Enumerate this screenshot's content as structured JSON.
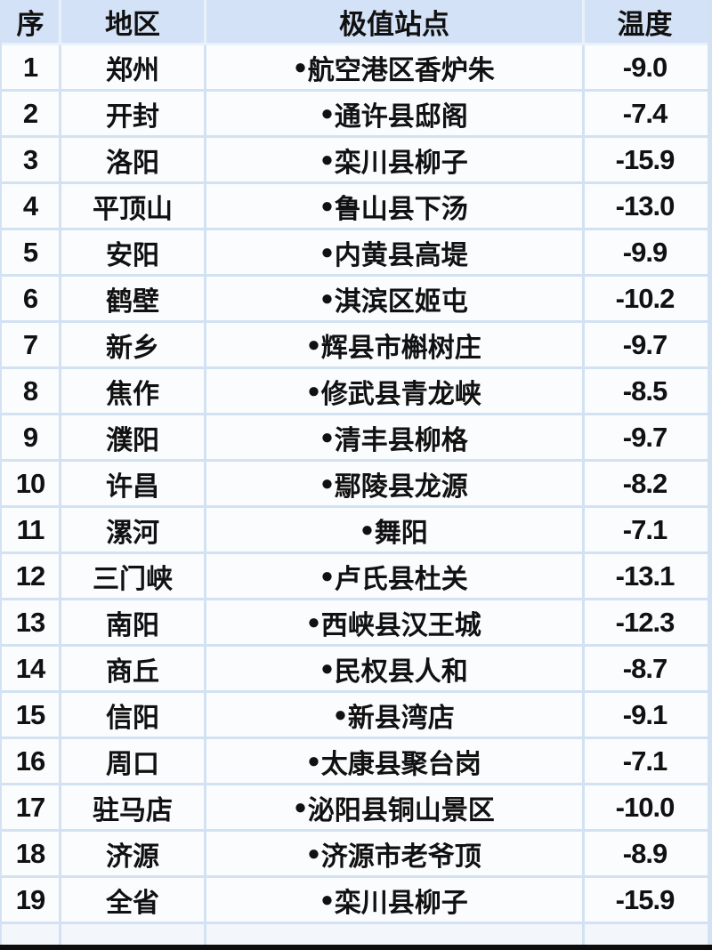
{
  "chart_data": {
    "type": "table",
    "columns": [
      "序",
      "地区",
      "极值站点",
      "温度"
    ],
    "rows": [
      {
        "seq": "1",
        "region": "郑州",
        "bullet": "●",
        "station": "航空港区香炉朱",
        "temp": "-9.0"
      },
      {
        "seq": "2",
        "region": "开封",
        "bullet": "●",
        "station": "通许县邸阁",
        "temp": "-7.4"
      },
      {
        "seq": "3",
        "region": "洛阳",
        "bullet": "●",
        "station": "栾川县柳子",
        "temp": "-15.9"
      },
      {
        "seq": "4",
        "region": "平顶山",
        "bullet": "●",
        "station": "鲁山县下汤",
        "temp": "-13.0"
      },
      {
        "seq": "5",
        "region": "安阳",
        "bullet": "●",
        "station": "内黄县高堤",
        "temp": "-9.9"
      },
      {
        "seq": "6",
        "region": "鹤壁",
        "bullet": "●",
        "station": "淇滨区姬屯",
        "temp": "-10.2"
      },
      {
        "seq": "7",
        "region": "新乡",
        "bullet": "●",
        "station": "辉县市槲树庄",
        "temp": "-9.7"
      },
      {
        "seq": "8",
        "region": "焦作",
        "bullet": "●",
        "station": "修武县青龙峡",
        "temp": "-8.5"
      },
      {
        "seq": "9",
        "region": "濮阳",
        "bullet": "●",
        "station": "清丰县柳格",
        "temp": "-9.7"
      },
      {
        "seq": "10",
        "region": "许昌",
        "bullet": "●",
        "station": "鄢陵县龙源",
        "temp": "-8.2"
      },
      {
        "seq": "11",
        "region": "漯河",
        "bullet": "●",
        "station": "舞阳",
        "temp": "-7.1"
      },
      {
        "seq": "12",
        "region": "三门峡",
        "bullet": "●",
        "station": "卢氏县杜关",
        "temp": "-13.1"
      },
      {
        "seq": "13",
        "region": "南阳",
        "bullet": "●",
        "station": "西峡县汉王城",
        "temp": "-12.3"
      },
      {
        "seq": "14",
        "region": "商丘",
        "bullet": "●",
        "station": "民权县人和",
        "temp": "-8.7"
      },
      {
        "seq": "15",
        "region": "信阳",
        "bullet": "●",
        "station": "新县湾店",
        "temp": "-9.1"
      },
      {
        "seq": "16",
        "region": "周口",
        "bullet": "●",
        "station": "太康县聚台岗",
        "temp": "-7.1"
      },
      {
        "seq": "17",
        "region": "驻马店",
        "bullet": "●",
        "station": "泌阳县铜山景区",
        "temp": "-10.0"
      },
      {
        "seq": "18",
        "region": "济源",
        "bullet": "●",
        "station": "济源市老爷顶",
        "temp": "-8.9"
      },
      {
        "seq": "19",
        "region": "全省",
        "bullet": "●",
        "station": "栾川县柳子",
        "temp": "-15.9"
      }
    ]
  },
  "colors": {
    "header_bg": "#d4e2f7",
    "row_bg": "#fbfcfe",
    "divider": "#d3e2f3",
    "header_divider": "#e9f1fa",
    "partial_row_bg": "#f3f7fc",
    "footer_bar": "#0d0d0d",
    "text": "#111111"
  }
}
